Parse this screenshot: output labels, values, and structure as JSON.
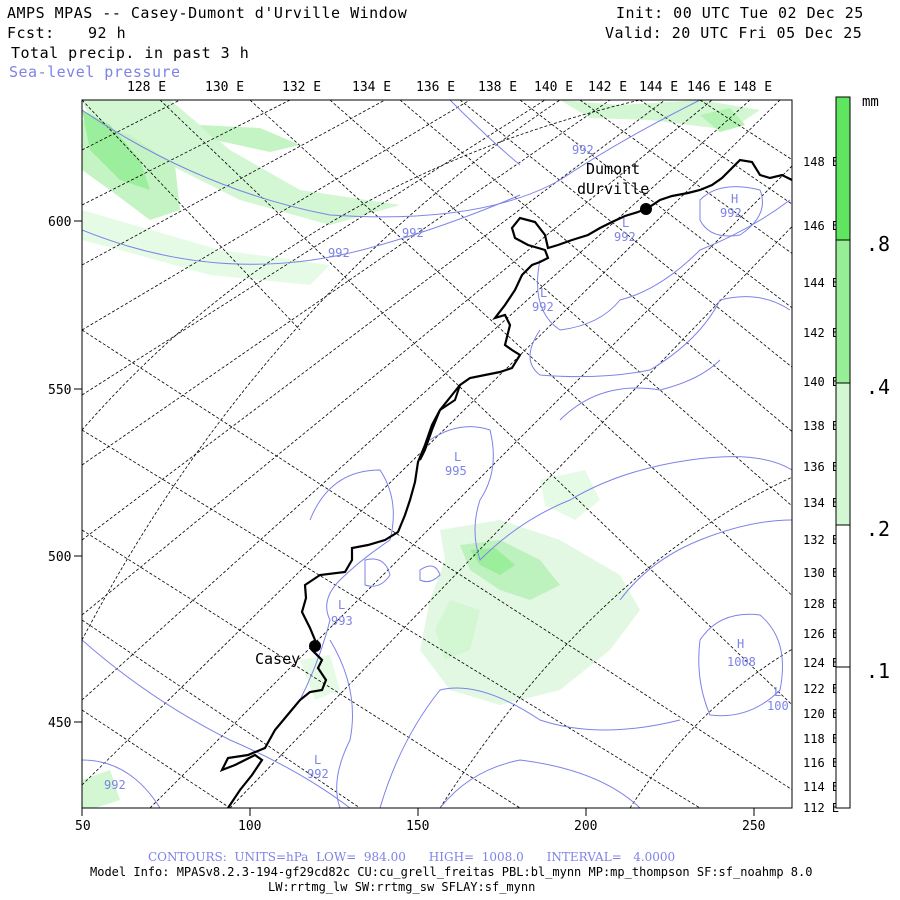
{
  "header": {
    "title": "AMPS MPAS -- Casey-Dumont d'Urville Window",
    "fcst_label": "Fcst:",
    "fcst_value": "92 h",
    "precip_label": "Total precip. in past 3 h",
    "slp_label": "Sea-level pressure",
    "init": "Init: 00 UTC Tue 02 Dec 25",
    "valid": "Valid: 20 UTC Fri 05 Dec 25"
  },
  "map": {
    "top_lon_labels": [
      "128 E",
      "130 E",
      "132 E",
      "134 E",
      "136 E",
      "138 E",
      "140 E",
      "142 E",
      "144 E",
      "146 E",
      "148 E"
    ],
    "right_lon_labels": [
      "148 E",
      "146 E",
      "144 E",
      "142 E",
      "140 E",
      "138 E",
      "136 E",
      "134 E",
      "132 E",
      "130 E",
      "128 E",
      "126 E",
      "124 E",
      "122 E",
      "120 E",
      "118 E",
      "116 E",
      "114 E",
      "112 E"
    ],
    "left_y_labels": [
      "600",
      "550",
      "500",
      "450"
    ],
    "bottom_x_labels": [
      "50",
      "100",
      "150",
      "200",
      "250"
    ],
    "stations": [
      {
        "name_line1": "Dumont",
        "name_line2": "dUrville"
      },
      {
        "name_line1": "Casey"
      }
    ],
    "pressure_labels": [
      {
        "text": "992"
      },
      {
        "text": "992"
      },
      {
        "text": "992"
      },
      {
        "text": "L"
      },
      {
        "text": "992"
      },
      {
        "text": "L"
      },
      {
        "text": "992"
      },
      {
        "text": "H"
      },
      {
        "text": "992"
      },
      {
        "text": "L"
      },
      {
        "text": "995"
      },
      {
        "text": "L"
      },
      {
        "text": "993"
      },
      {
        "text": "H"
      },
      {
        "text": "1008"
      },
      {
        "text": "L"
      },
      {
        "text": "100"
      },
      {
        "text": "L"
      },
      {
        "text": "992"
      },
      {
        "text": "992"
      }
    ]
  },
  "colorbar": {
    "unit": "mm",
    "labels": [
      ".8",
      ".4",
      ".2",
      ".1"
    ],
    "colors": [
      "#5fe55f",
      "#96ee96",
      "#d2f7d2",
      "#ffffff"
    ]
  },
  "footer": {
    "contours": "CONTOURS:  UNITS=hPa  LOW=  984.00      HIGH=  1008.0      INTERVAL=   4.0000",
    "model_info": "Model Info: MPASv8.2.3-194-gf29cd82c CU:cu_grell_freitas PBL:bl_mynn MP:mp_thompson SF:sf_noahmp 8.0",
    "model_info2": "LW:rrtmg_lw SW:rrtmg_sw SFLAY:sf_mynn"
  }
}
